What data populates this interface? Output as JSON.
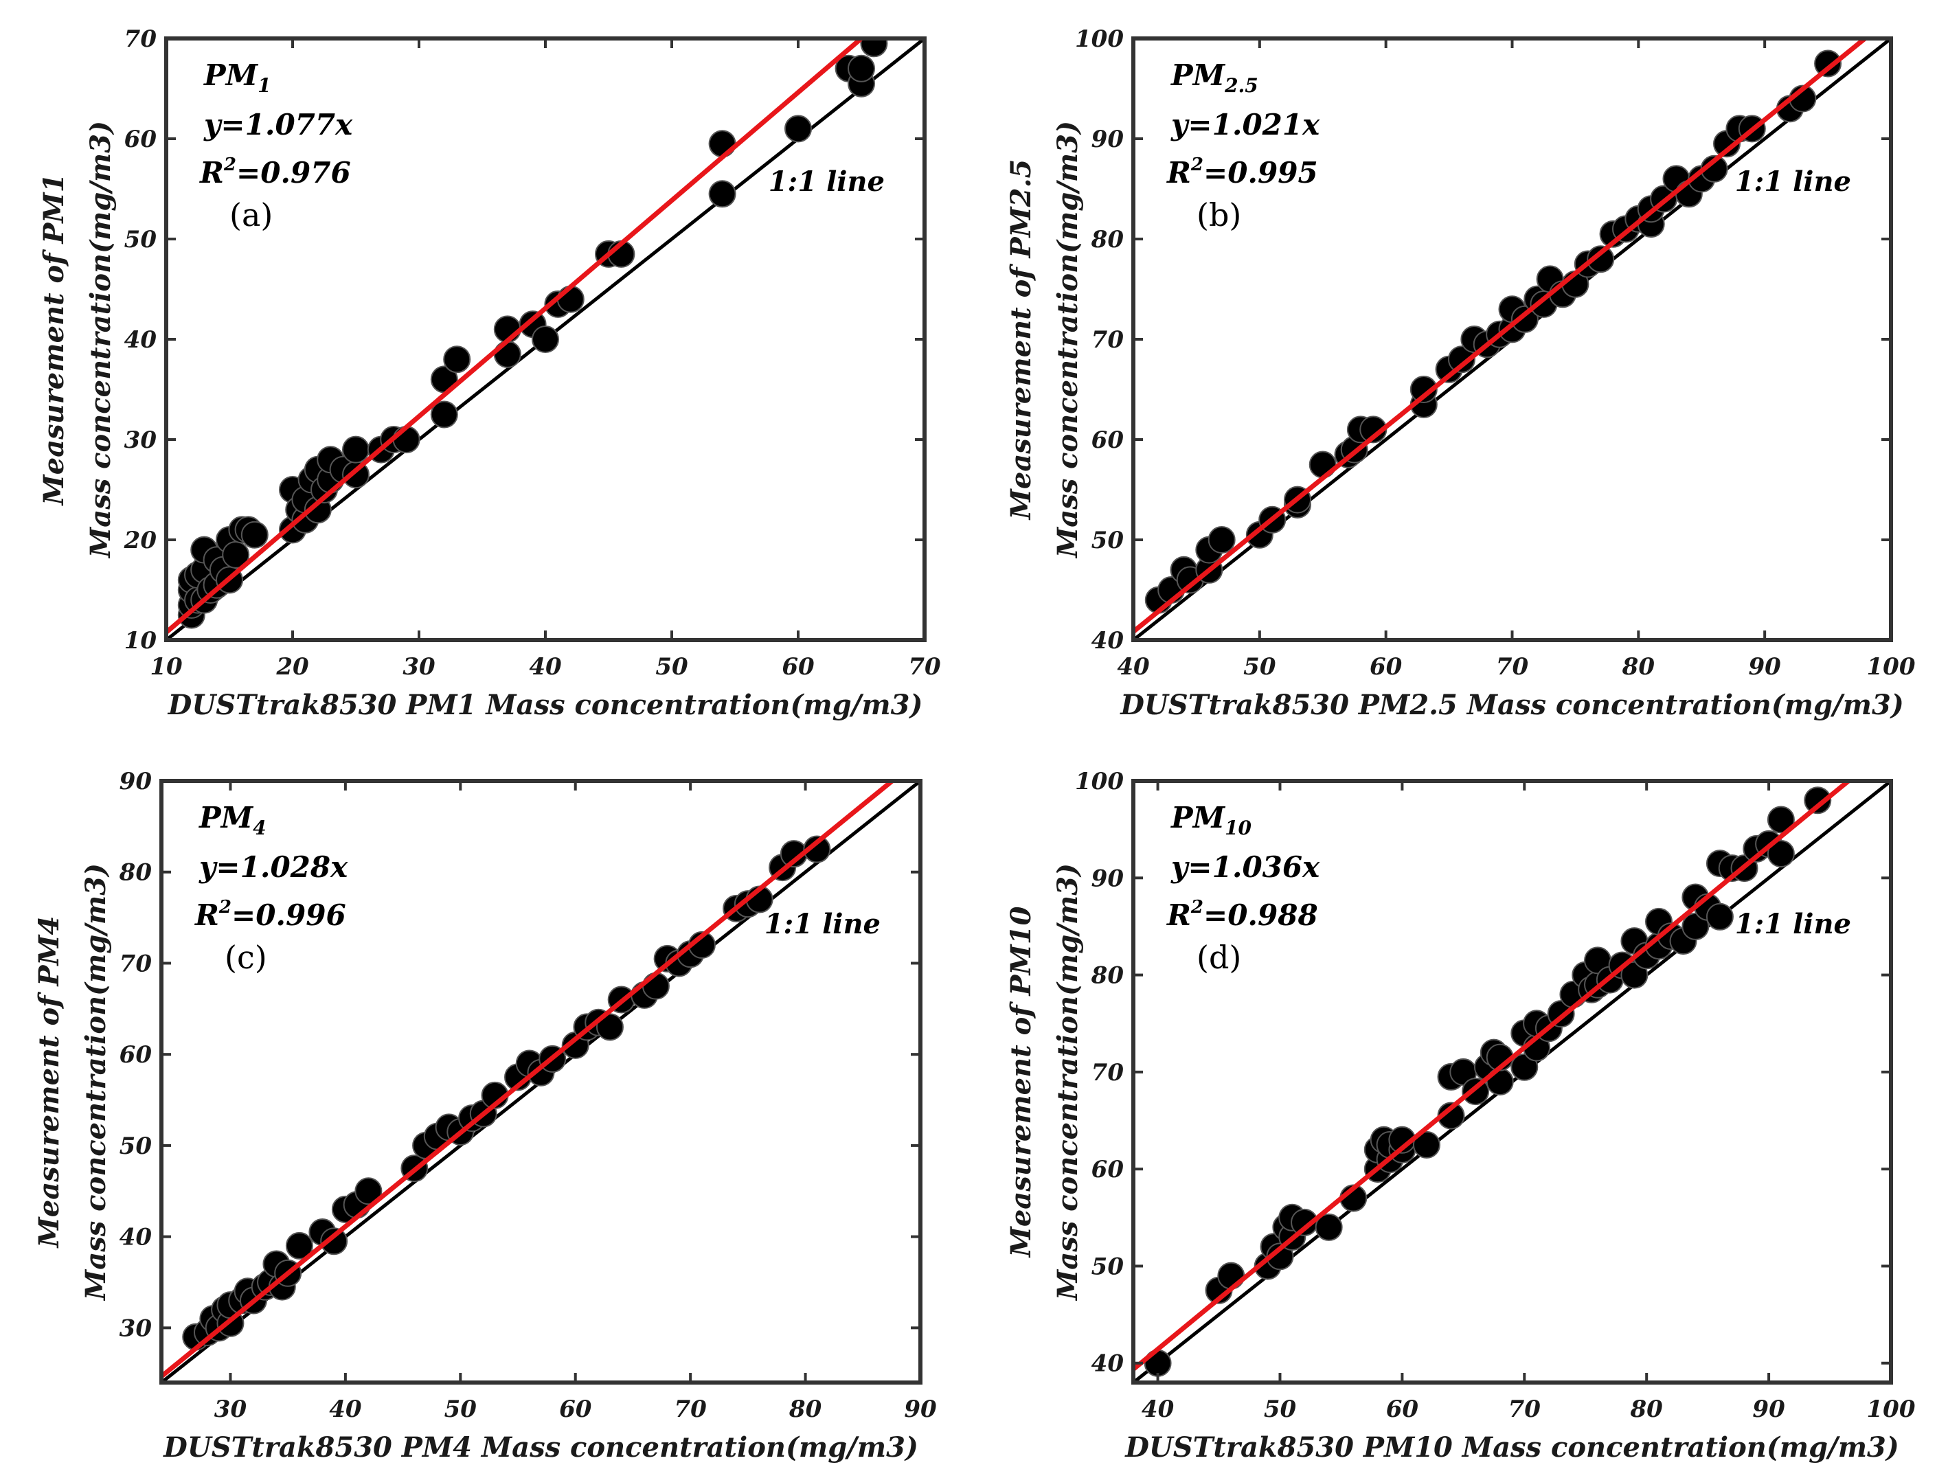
{
  "chart_data": [
    {
      "type": "scatter",
      "panel_label": "(a)",
      "annotation_pm": "PM",
      "annotation_pm_sub": "1",
      "equation": "y=1.077x",
      "r2_value": "=0.976",
      "one_to_one_label": "1:1 line",
      "xlabel": "DUSTtrak8530 PM1 Mass concentration(mg/m3)",
      "ylabel_line1": "Measurement of PM1",
      "ylabel_line2": "Mass concentration(mg/m3)",
      "xlim": [
        10,
        70
      ],
      "ylim": [
        10,
        70
      ],
      "xticks": [
        "10",
        "20",
        "30",
        "40",
        "50",
        "60",
        "70"
      ],
      "yticks": [
        "10",
        "20",
        "30",
        "40",
        "50",
        "60",
        "70"
      ],
      "slope": 1.077,
      "x": [
        12,
        12,
        12,
        12,
        12.5,
        12.5,
        13,
        13,
        13,
        13.5,
        14,
        14,
        14.5,
        15,
        15,
        15.5,
        16,
        16.5,
        17,
        20,
        20,
        20.5,
        21,
        21,
        21.5,
        22,
        22,
        22.5,
        23,
        23,
        24,
        25,
        25,
        27,
        28,
        29,
        32,
        32,
        33,
        37,
        37,
        39,
        40,
        41,
        42,
        45,
        46,
        54,
        54,
        60,
        64,
        65,
        65,
        66
      ],
      "y": [
        12.5,
        13.5,
        15,
        16,
        14,
        16.5,
        14,
        17,
        19,
        15,
        15.5,
        18,
        17,
        16,
        20,
        18.5,
        21,
        21,
        20.5,
        21,
        25,
        23,
        22,
        24,
        26,
        23,
        27,
        25,
        26,
        28,
        27,
        26.5,
        29,
        29,
        30,
        30,
        32.5,
        36,
        38,
        38.5,
        41,
        41.5,
        40,
        43.5,
        44,
        48.5,
        48.5,
        54.5,
        59.5,
        61,
        67,
        65.5,
        67,
        69.5
      ]
    },
    {
      "type": "scatter",
      "panel_label": "(b)",
      "annotation_pm": "PM",
      "annotation_pm_sub": "2.5",
      "equation": "y=1.021x",
      "r2_value": "=0.995",
      "one_to_one_label": "1:1 line",
      "xlabel": "DUSTtrak8530 PM2.5 Mass concentration(mg/m3)",
      "ylabel_line1": "Measurement of PM2.5",
      "ylabel_line2": "Mass concentration(mg/m3)",
      "xlim": [
        40,
        100
      ],
      "ylim": [
        40,
        100
      ],
      "xticks": [
        "40",
        "50",
        "60",
        "70",
        "80",
        "90",
        "100"
      ],
      "yticks": [
        "40",
        "50",
        "60",
        "70",
        "80",
        "90",
        "100"
      ],
      "slope": 1.021,
      "x": [
        42,
        43,
        44,
        44.5,
        46,
        46,
        47,
        50,
        51,
        53,
        53,
        55,
        57,
        57.5,
        58,
        59,
        63,
        63,
        65,
        66,
        67,
        68,
        69,
        70,
        70,
        71,
        72,
        72.5,
        73,
        74,
        75,
        76,
        77,
        78,
        79,
        80,
        81,
        81,
        82,
        83,
        84,
        85,
        86,
        87,
        88,
        89,
        92,
        93,
        95
      ],
      "y": [
        44,
        45,
        47,
        46,
        47,
        49,
        50,
        50.5,
        52,
        53.5,
        54,
        57.5,
        58.5,
        59,
        61,
        61,
        63.5,
        65,
        67,
        68,
        70,
        69.5,
        70.5,
        71,
        73,
        72,
        74,
        73.5,
        76,
        74.5,
        75.5,
        77.5,
        78,
        80.5,
        81,
        82,
        81.5,
        83,
        84,
        86,
        84.5,
        86,
        87,
        89.5,
        91,
        91,
        93,
        94,
        97.5
      ]
    },
    {
      "type": "scatter",
      "panel_label": "(c)",
      "annotation_pm": "PM",
      "annotation_pm_sub": "4",
      "equation": "y=1.028x",
      "r2_value": "=0.996",
      "one_to_one_label": "1:1 line",
      "xlabel": "DUSTtrak8530 PM4 Mass concentration(mg/m3)",
      "ylabel_line1": "Measurement of PM4",
      "ylabel_line2": "Mass concentration(mg/m3)",
      "xlim": [
        24,
        90
      ],
      "ylim": [
        24,
        90
      ],
      "xticks": [
        "30",
        "40",
        "50",
        "60",
        "70",
        "80",
        "90"
      ],
      "yticks": [
        "30",
        "40",
        "50",
        "60",
        "70",
        "80",
        "90"
      ],
      "xtick_values": [
        30,
        40,
        50,
        60,
        70,
        80,
        90
      ],
      "slope": 1.028,
      "x": [
        27,
        28,
        28.5,
        29,
        29.5,
        30,
        30,
        31,
        31.5,
        32,
        33,
        33.5,
        34,
        34.5,
        35,
        36,
        38,
        39,
        40,
        41,
        42,
        46,
        47,
        48,
        49,
        50,
        51,
        52,
        53,
        55,
        56,
        57,
        58,
        60,
        61,
        62,
        63,
        64,
        66,
        67,
        68,
        69,
        70,
        71,
        74,
        75,
        76,
        78,
        79,
        81
      ],
      "y": [
        29,
        29.5,
        31,
        30,
        32,
        30.5,
        32.5,
        33,
        34,
        33,
        34.5,
        35,
        37,
        34.5,
        36,
        39,
        40.5,
        39.5,
        43,
        43.5,
        45,
        47.5,
        50,
        51,
        52,
        51.5,
        53,
        53.5,
        55.5,
        57.5,
        59,
        58,
        59.5,
        61,
        63,
        63.5,
        63,
        66,
        66.5,
        67.5,
        70.5,
        70,
        71,
        72,
        76,
        76.5,
        77,
        80.5,
        82,
        82.5
      ]
    },
    {
      "type": "scatter",
      "panel_label": "(d)",
      "annotation_pm": "PM",
      "annotation_pm_sub": "10",
      "equation": "y=1.036x",
      "r2_value": "=0.988",
      "one_to_one_label": "1:1 line",
      "xlabel": "DUSTtrak8530 PM10 Mass concentration(mg/m3)",
      "ylabel_line1": "Measurement of PM10",
      "ylabel_line2": "Mass concentration(mg/m3)",
      "xlim": [
        38,
        100
      ],
      "ylim": [
        38,
        100
      ],
      "xticks": [
        "40",
        "50",
        "60",
        "70",
        "80",
        "90",
        "100"
      ],
      "yticks": [
        "40",
        "50",
        "60",
        "70",
        "80",
        "90",
        "100"
      ],
      "slope": 1.036,
      "x": [
        40,
        45,
        46,
        49,
        49.5,
        50,
        50.5,
        51,
        51,
        52,
        54,
        56,
        58,
        58,
        58.5,
        59,
        59,
        60,
        60,
        62,
        64,
        64,
        65,
        66,
        67,
        67.5,
        68,
        68,
        70,
        70,
        71,
        71,
        72,
        73,
        74,
        75,
        75.5,
        76,
        76,
        77,
        78,
        79,
        79,
        80,
        81,
        81,
        82,
        83,
        84,
        84,
        85,
        86,
        86,
        87,
        88,
        89,
        90,
        91,
        91,
        94
      ],
      "y": [
        40,
        47.5,
        49,
        50,
        52,
        51,
        54,
        53,
        55,
        54.5,
        54,
        57,
        60,
        62,
        63,
        61,
        62.5,
        62,
        63,
        62.5,
        65.5,
        69.5,
        70,
        68,
        70.5,
        72,
        69,
        71.5,
        70.5,
        74,
        72.5,
        75,
        74.5,
        76,
        78,
        80,
        78.5,
        79,
        81.5,
        79.5,
        81,
        80,
        83.5,
        82,
        83,
        85.5,
        84,
        83.5,
        85,
        88,
        87,
        86,
        91.5,
        91,
        91,
        93,
        93.5,
        92.5,
        96,
        98
      ]
    }
  ],
  "colors": {
    "fit_line": "#e8161a",
    "one_to_one_line": "#000000",
    "marker_fill": "#000000",
    "axes_stroke": "#333333"
  },
  "r2_prefix": "R",
  "r2_superscript": "2"
}
